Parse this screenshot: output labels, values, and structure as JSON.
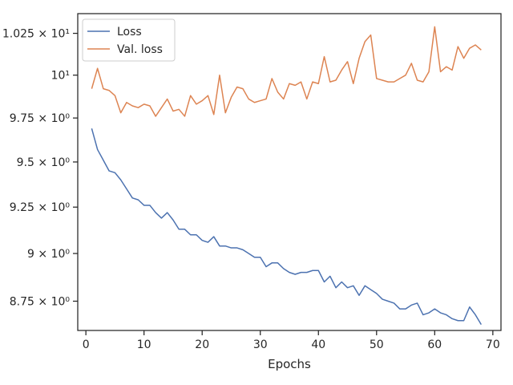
{
  "chart_data": {
    "type": "line",
    "title": "",
    "xlabel": "Epochs",
    "ylabel": "",
    "x_ticks": [
      0,
      10,
      20,
      30,
      40,
      50,
      60,
      70
    ],
    "xlim": [
      -1.4,
      71.4
    ],
    "y_scale": "log",
    "ylim": [
      8.6,
      10.37
    ],
    "y_ticks": [
      {
        "value": 8.75,
        "label": "8.75 × 10⁰"
      },
      {
        "value": 9.0,
        "label": "9 × 10⁰"
      },
      {
        "value": 9.25,
        "label": "9.25 × 10⁰"
      },
      {
        "value": 9.5,
        "label": "9.5 × 10⁰"
      },
      {
        "value": 9.75,
        "label": "9.75 × 10⁰"
      },
      {
        "value": 10.0,
        "label": "10¹"
      },
      {
        "value": 10.25,
        "label": "1.025 × 10¹"
      }
    ],
    "grid": false,
    "legend_position": "top-left",
    "series": [
      {
        "name": "Loss",
        "color": "#4c72b0",
        "x": [
          1,
          2,
          3,
          4,
          5,
          6,
          7,
          8,
          9,
          10,
          11,
          12,
          13,
          14,
          15,
          16,
          17,
          18,
          19,
          20,
          21,
          22,
          23,
          24,
          25,
          26,
          27,
          28,
          29,
          30,
          31,
          32,
          33,
          34,
          35,
          36,
          37,
          38,
          39,
          40,
          41,
          42,
          43,
          44,
          45,
          46,
          47,
          48,
          49,
          50,
          51,
          52,
          53,
          54,
          55,
          56,
          57,
          58,
          59,
          60,
          61,
          62,
          63,
          64,
          65,
          66,
          67,
          68
        ],
        "values": [
          9.69,
          9.57,
          9.51,
          9.45,
          9.44,
          9.4,
          9.35,
          9.3,
          9.29,
          9.26,
          9.26,
          9.22,
          9.19,
          9.22,
          9.18,
          9.13,
          9.13,
          9.1,
          9.1,
          9.07,
          9.06,
          9.09,
          9.04,
          9.04,
          9.03,
          9.03,
          9.02,
          9.0,
          8.98,
          8.98,
          8.93,
          8.95,
          8.95,
          8.92,
          8.9,
          8.89,
          8.9,
          8.9,
          8.91,
          8.91,
          8.85,
          8.88,
          8.82,
          8.85,
          8.82,
          8.83,
          8.78,
          8.83,
          8.81,
          8.79,
          8.76,
          8.75,
          8.74,
          8.71,
          8.71,
          8.73,
          8.74,
          8.68,
          8.69,
          8.71,
          8.69,
          8.68,
          8.66,
          8.65,
          8.65,
          8.72,
          8.68,
          8.63
        ]
      },
      {
        "name": "Val. loss",
        "color": "#dd8452",
        "x": [
          1,
          2,
          3,
          4,
          5,
          6,
          7,
          8,
          9,
          10,
          11,
          12,
          13,
          14,
          15,
          16,
          17,
          18,
          19,
          20,
          21,
          22,
          23,
          24,
          25,
          26,
          27,
          28,
          29,
          30,
          31,
          32,
          33,
          34,
          35,
          36,
          37,
          38,
          39,
          40,
          41,
          42,
          43,
          44,
          45,
          46,
          47,
          48,
          49,
          50,
          51,
          52,
          53,
          54,
          55,
          56,
          57,
          58,
          59,
          60,
          61,
          62,
          63,
          64,
          65,
          66,
          67,
          68
        ],
        "values": [
          9.92,
          10.04,
          9.92,
          9.91,
          9.88,
          9.78,
          9.84,
          9.82,
          9.81,
          9.83,
          9.82,
          9.76,
          9.81,
          9.86,
          9.79,
          9.8,
          9.76,
          9.88,
          9.83,
          9.85,
          9.88,
          9.77,
          10.0,
          9.78,
          9.87,
          9.93,
          9.92,
          9.86,
          9.84,
          9.85,
          9.86,
          9.98,
          9.9,
          9.86,
          9.95,
          9.94,
          9.96,
          9.86,
          9.96,
          9.95,
          10.11,
          9.96,
          9.97,
          10.03,
          10.08,
          9.95,
          10.1,
          10.2,
          10.24,
          9.98,
          9.97,
          9.96,
          9.96,
          9.98,
          10.0,
          10.07,
          9.97,
          9.96,
          10.02,
          10.29,
          10.02,
          10.05,
          10.03,
          10.17,
          10.1,
          10.16,
          10.18,
          10.15
        ]
      }
    ]
  }
}
